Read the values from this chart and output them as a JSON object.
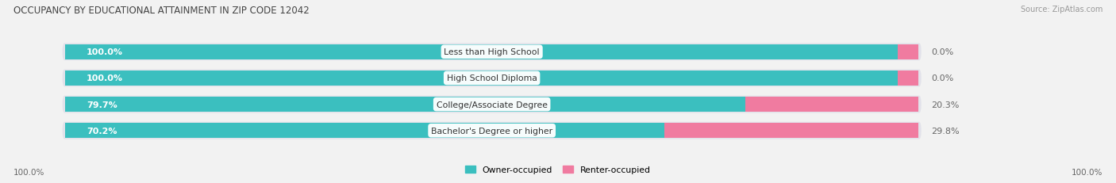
{
  "title": "OCCUPANCY BY EDUCATIONAL ATTAINMENT IN ZIP CODE 12042",
  "source": "Source: ZipAtlas.com",
  "categories": [
    "Less than High School",
    "High School Diploma",
    "College/Associate Degree",
    "Bachelor's Degree or higher"
  ],
  "owner_pct": [
    100.0,
    100.0,
    79.7,
    70.2
  ],
  "renter_pct": [
    0.0,
    0.0,
    20.3,
    29.8
  ],
  "owner_color": "#3BBFBF",
  "renter_color": "#F07BA0",
  "bg_color": "#f2f2f2",
  "bar_bg_color": "#e2e2ea",
  "label_color": "#666666",
  "title_color": "#444444",
  "bar_height": 0.58,
  "legend_owner": "Owner-occupied",
  "legend_renter": "Renter-occupied",
  "left_label": "100.0%",
  "right_label": "100.0%"
}
